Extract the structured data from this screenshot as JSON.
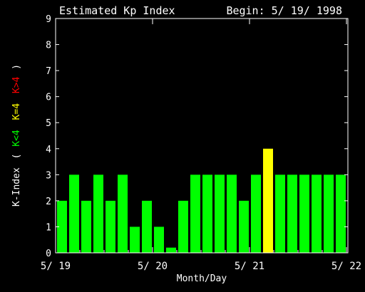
{
  "chart_data": {
    "type": "bar",
    "title": "Estimated Kp Index",
    "begin_label": "Begin: 5/ 19/ 1998",
    "xlabel": "Month/Day",
    "ylabel": {
      "prefix": "K-Index",
      "open": "(",
      "low": "K<4",
      "mid": "K=4",
      "high": "K>4",
      "close": ")"
    },
    "ylim": [
      0,
      9
    ],
    "yticks": [
      "0",
      "1",
      "2",
      "3",
      "4",
      "5",
      "6",
      "7",
      "8",
      "9"
    ],
    "xticks": [
      {
        "label": "5/ 19",
        "bar_index": 0
      },
      {
        "label": "5/ 20",
        "bar_index": 8
      },
      {
        "label": "5/ 21",
        "bar_index": 16
      },
      {
        "label": "5/ 22",
        "bar_index": 24
      }
    ],
    "values": [
      2,
      3,
      2,
      3,
      2,
      3,
      1,
      2,
      1,
      0.2,
      2,
      3,
      3,
      3,
      3,
      2,
      3,
      4,
      3,
      3,
      3,
      3,
      3,
      3
    ],
    "colors": {
      "low": "#00ff00",
      "mid": "#ffff00",
      "high": "#ff0000",
      "axis": "#ffffff"
    }
  }
}
